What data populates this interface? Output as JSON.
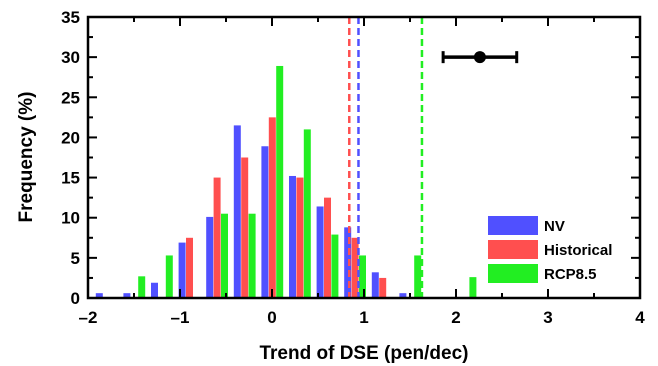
{
  "chart_data": {
    "type": "bar",
    "xlabel": "Trend of DSE (pen/dec)",
    "ylabel": "Frequency (%)",
    "xlim": [
      -2,
      4
    ],
    "ylim": [
      0,
      35
    ],
    "xticks": [
      {
        "value": -2,
        "label": "–2"
      },
      {
        "value": -1,
        "label": "–1"
      },
      {
        "value": 0,
        "label": "0"
      },
      {
        "value": 1,
        "label": "1"
      },
      {
        "value": 2,
        "label": "2"
      },
      {
        "value": 3,
        "label": "3"
      },
      {
        "value": 4,
        "label": "4"
      }
    ],
    "yticks": [
      0,
      5,
      10,
      15,
      20,
      25,
      30,
      35
    ],
    "bin_centers": [
      -1.8,
      -1.5,
      -1.2,
      -0.9,
      -0.6,
      -0.3,
      0.0,
      0.3,
      0.6,
      0.9,
      1.2,
      1.5,
      1.8,
      2.1
    ],
    "series": [
      {
        "name": "NV",
        "color": "#5050ff",
        "values": [
          0.6,
          0.6,
          1.9,
          6.9,
          10.1,
          21.5,
          18.9,
          15.2,
          11.4,
          8.8,
          3.2,
          0.6,
          0,
          0
        ]
      },
      {
        "name": "Historical",
        "color": "#ff4f4f",
        "values": [
          0,
          0,
          0,
          7.5,
          15.0,
          17.5,
          22.5,
          15.0,
          12.5,
          7.5,
          2.5,
          0,
          0,
          0
        ]
      },
      {
        "name": "RCP8.5",
        "color": "#22ee22",
        "values": [
          0,
          2.7,
          5.3,
          0,
          10.5,
          10.5,
          28.9,
          21.0,
          7.9,
          5.3,
          0,
          5.3,
          0,
          2.6
        ]
      }
    ],
    "vlines": [
      {
        "series": "Historical",
        "x": 0.84,
        "color": "#ff4f4f"
      },
      {
        "series": "NV",
        "x": 0.94,
        "color": "#5050ff"
      },
      {
        "series": "RCP8.5",
        "x": 1.63,
        "color": "#22ee22"
      }
    ],
    "errorbar": {
      "x": 2.26,
      "y": 30,
      "xmin": 1.86,
      "xmax": 2.66,
      "color": "#000000"
    },
    "legend": {
      "placement": "bottom-right"
    }
  }
}
